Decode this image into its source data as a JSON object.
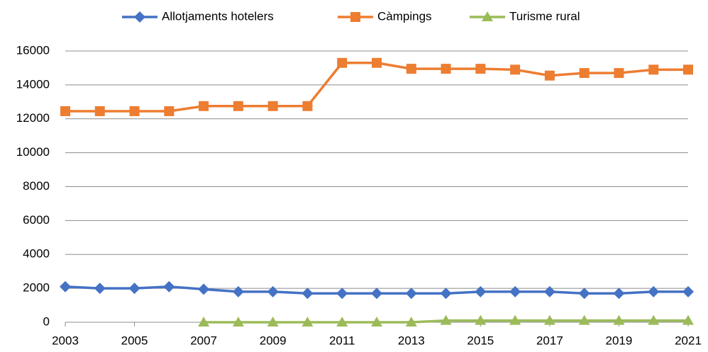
{
  "chart_data": {
    "type": "line",
    "x": [
      2003,
      2004,
      2005,
      2006,
      2007,
      2008,
      2009,
      2010,
      2011,
      2012,
      2013,
      2014,
      2015,
      2016,
      2017,
      2018,
      2019,
      2020,
      2021
    ],
    "series": [
      {
        "name": "Allotjaments hotelers",
        "color": "#4472c4",
        "marker": "diamond",
        "values": [
          2100,
          2000,
          2000,
          2100,
          1950,
          1800,
          1800,
          1700,
          1700,
          1700,
          1700,
          1700,
          1800,
          1800,
          1800,
          1700,
          1700,
          1800,
          1800
        ]
      },
      {
        "name": "Càmpings",
        "color": "#ed7d31",
        "marker": "square",
        "values": [
          12450,
          12450,
          12450,
          12450,
          12750,
          12750,
          12750,
          12750,
          15300,
          15300,
          14950,
          14950,
          14950,
          14900,
          14550,
          14700,
          14700,
          14900,
          14900
        ]
      },
      {
        "name": "Turisme rural",
        "color": "#9bbb59",
        "marker": "triangle",
        "values": [
          null,
          null,
          null,
          null,
          0,
          0,
          0,
          0,
          0,
          0,
          0,
          100,
          100,
          100,
          100,
          100,
          100,
          100,
          100
        ]
      }
    ],
    "xlim": [
      2003,
      2021
    ],
    "xticks": [
      2003,
      2005,
      2007,
      2009,
      2011,
      2013,
      2015,
      2017,
      2019,
      2021
    ],
    "ylim": [
      0,
      16000
    ],
    "yticks": [
      0,
      2000,
      4000,
      6000,
      8000,
      10000,
      12000,
      14000,
      16000
    ],
    "grid": true,
    "legend": "top"
  }
}
